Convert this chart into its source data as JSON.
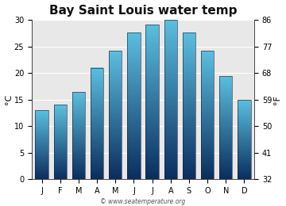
{
  "title": "Bay Saint Louis water temp",
  "months": [
    "J",
    "F",
    "M",
    "A",
    "M",
    "J",
    "J",
    "A",
    "S",
    "O",
    "N",
    "D"
  ],
  "values_c": [
    13.0,
    14.0,
    16.5,
    21.0,
    24.2,
    27.7,
    29.2,
    30.0,
    27.7,
    24.2,
    19.5,
    15.0
  ],
  "ylabel_left": "°C",
  "ylabel_right": "°F",
  "yticks_c": [
    0,
    5,
    10,
    15,
    20,
    25,
    30
  ],
  "yticks_f": [
    32,
    41,
    50,
    59,
    68,
    77,
    86
  ],
  "ylim": [
    0,
    30
  ],
  "bar_color_top": "#5abfdf",
  "bar_color_bottom": "#0a2d5e",
  "plot_bg_color": "#e8e8e8",
  "fig_bg_color": "#ffffff",
  "grid_color": "#ffffff",
  "title_fontsize": 11,
  "tick_fontsize": 7,
  "label_fontsize": 8,
  "watermark": "© www.seatemperature.org",
  "bar_width": 0.7
}
